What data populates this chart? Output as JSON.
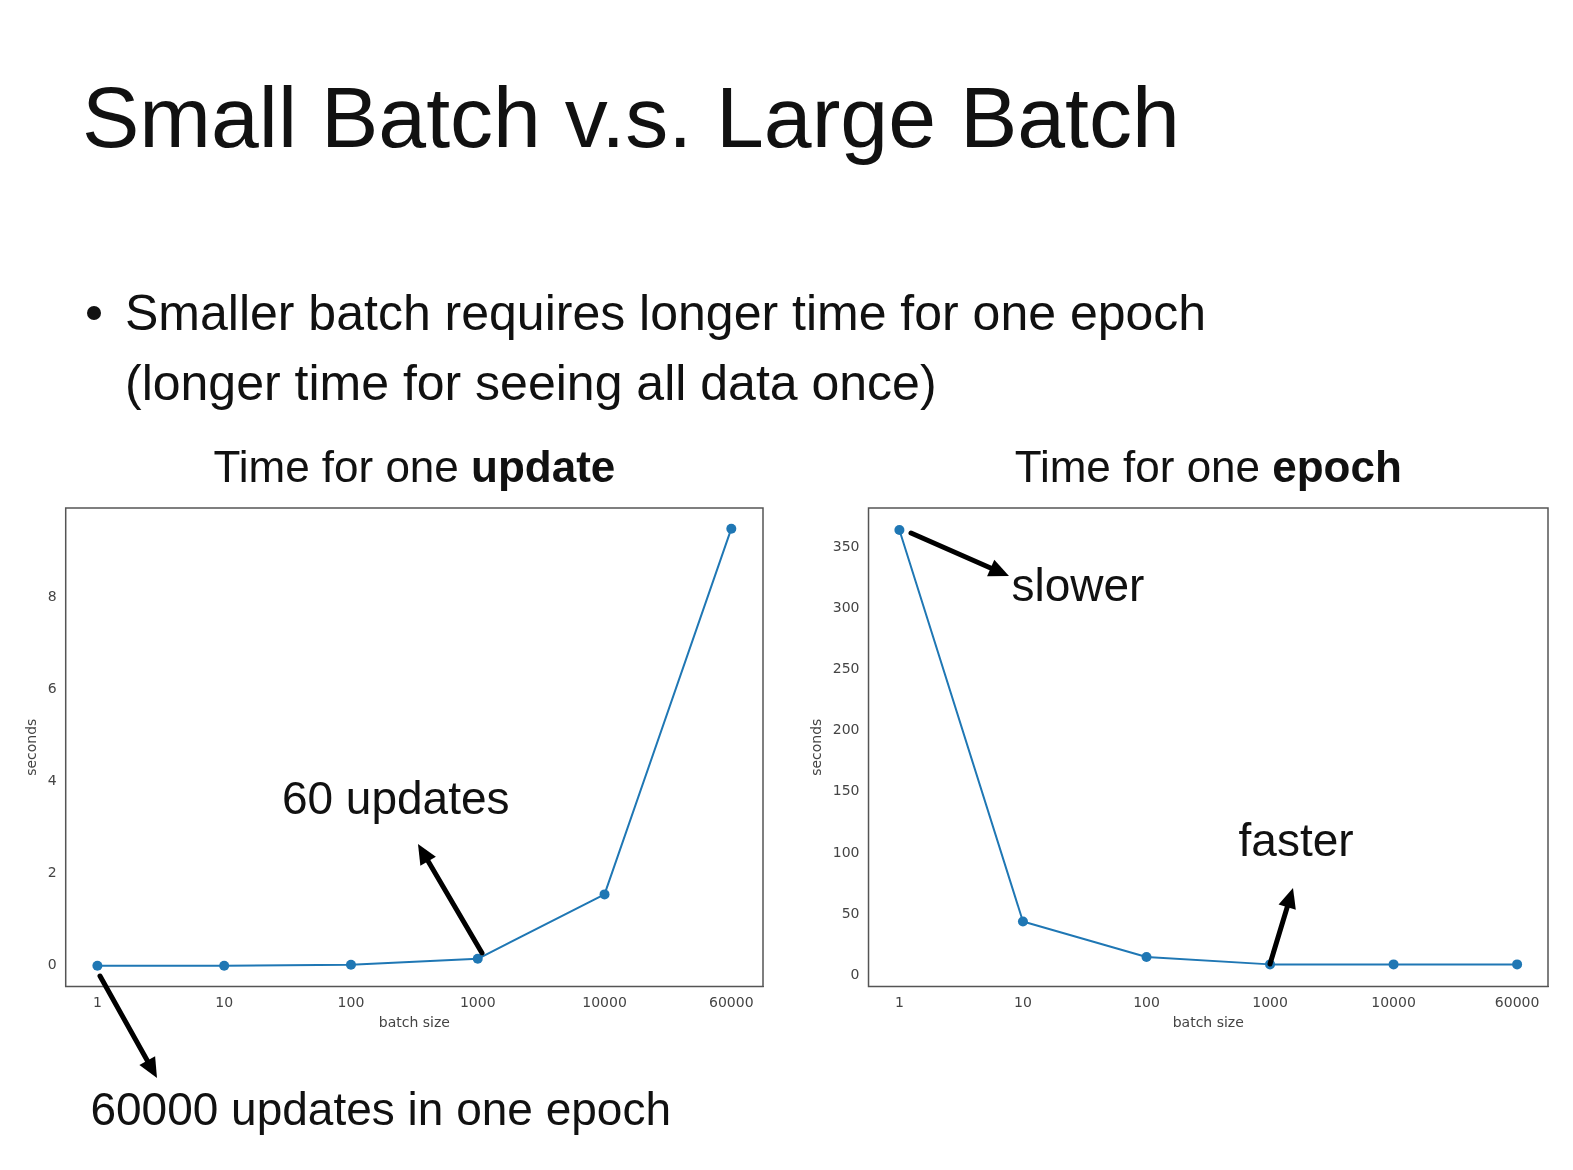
{
  "chart_data": [
    {
      "type": "other",
      "title": "Small Batch v.s. Large Batch",
      "subtitle": "Smaller batch requires longer time for one epoch (longer time for seeing all data once)"
    },
    {
      "type": "line",
      "title": "Time for one update",
      "xlabel": "batch size",
      "ylabel": "seconds",
      "categories": [
        "1",
        "10",
        "100",
        "1000",
        "10000",
        "60000"
      ],
      "values": [
        0,
        0,
        0.02,
        0.15,
        1.55,
        9.5
      ],
      "color": "#1f77b4",
      "ylim": [
        -0.45,
        9.95
      ],
      "yticks": [
        0,
        2,
        4,
        6,
        8
      ],
      "marker": "circle",
      "annotations": [
        {
          "text": "60 updates",
          "x": "1000",
          "y": 0.15
        },
        {
          "text": "60000 updates in one epoch",
          "x": "1",
          "y": 0
        }
      ]
    },
    {
      "type": "line",
      "title": "Time for one epoch",
      "xlabel": "batch size",
      "ylabel": "seconds",
      "categories": [
        "1",
        "10",
        "100",
        "1000",
        "10000",
        "60000"
      ],
      "values": [
        364,
        44,
        15,
        9,
        9,
        9
      ],
      "color": "#1f77b4",
      "ylim": [
        -9,
        382
      ],
      "yticks": [
        0,
        50,
        100,
        150,
        200,
        250,
        300,
        350
      ],
      "marker": "circle",
      "annotations": [
        {
          "text": "slower",
          "x": "1",
          "y": 364
        },
        {
          "text": "faster",
          "x": "1000",
          "y": 9
        }
      ]
    }
  ]
}
